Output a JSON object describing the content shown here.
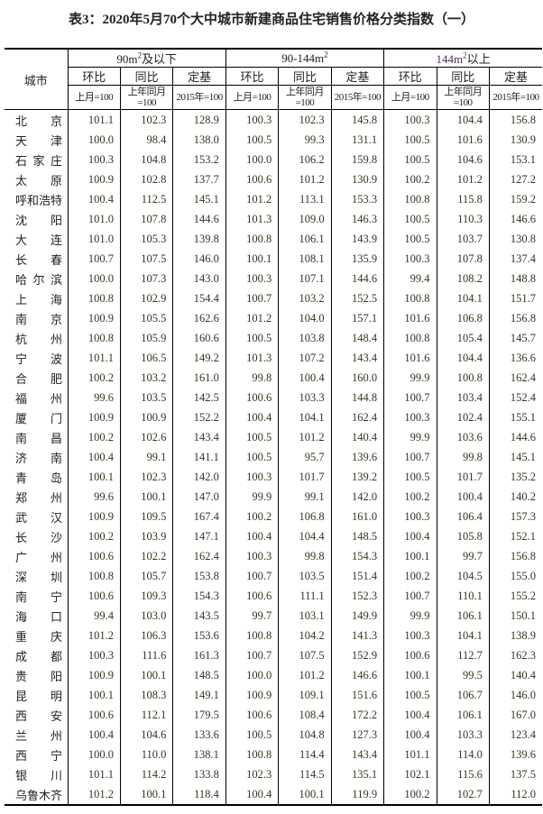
{
  "title": "表3：2020年5月70个大中城市新建商品住宅销售价格分类指数（一）",
  "header": {
    "city": "城市",
    "groups": [
      {
        "pre": "90m",
        "sup": "2",
        "post": "及以下"
      },
      {
        "pre": "90-144m",
        "sup": "2",
        "post": ""
      },
      {
        "pre": "144m",
        "sup": "2",
        "post": "以上"
      }
    ],
    "sub": [
      "环比",
      "同比",
      "定基"
    ],
    "base": [
      "上月=100",
      "上年同月=100",
      "2015年=100"
    ]
  },
  "rows": [
    {
      "city": "北京",
      "v": [
        "101.1",
        "102.3",
        "128.9",
        "100.3",
        "102.3",
        "145.8",
        "100.3",
        "104.4",
        "156.8"
      ]
    },
    {
      "city": "天津",
      "v": [
        "100.0",
        "98.4",
        "138.0",
        "100.5",
        "99.3",
        "131.1",
        "100.5",
        "101.6",
        "130.9"
      ]
    },
    {
      "city": "石家庄",
      "v": [
        "100.3",
        "104.8",
        "153.2",
        "100.0",
        "106.2",
        "159.8",
        "100.5",
        "104.6",
        "153.1"
      ]
    },
    {
      "city": "太原",
      "v": [
        "100.9",
        "102.8",
        "137.7",
        "100.6",
        "101.2",
        "130.9",
        "100.2",
        "101.2",
        "127.2"
      ]
    },
    {
      "city": "呼和浩特",
      "v": [
        "100.4",
        "112.5",
        "145.1",
        "101.2",
        "113.1",
        "153.3",
        "100.8",
        "115.8",
        "159.2"
      ]
    },
    {
      "city": "沈阳",
      "v": [
        "101.0",
        "107.8",
        "144.6",
        "101.3",
        "109.0",
        "146.3",
        "100.5",
        "110.3",
        "146.6"
      ]
    },
    {
      "city": "大连",
      "v": [
        "101.0",
        "105.3",
        "139.8",
        "100.8",
        "106.1",
        "143.9",
        "100.5",
        "103.7",
        "130.8"
      ]
    },
    {
      "city": "长春",
      "v": [
        "100.7",
        "107.5",
        "146.0",
        "100.1",
        "108.1",
        "135.9",
        "100.3",
        "107.8",
        "137.4"
      ]
    },
    {
      "city": "哈尔滨",
      "v": [
        "100.0",
        "107.3",
        "143.0",
        "100.3",
        "107.1",
        "144.6",
        "99.4",
        "108.2",
        "148.8"
      ]
    },
    {
      "city": "上海",
      "v": [
        "100.8",
        "102.9",
        "154.4",
        "100.7",
        "103.2",
        "152.5",
        "100.8",
        "104.1",
        "151.7"
      ]
    },
    {
      "city": "南京",
      "v": [
        "100.9",
        "105.5",
        "162.6",
        "101.2",
        "104.0",
        "157.1",
        "101.6",
        "106.8",
        "156.8"
      ]
    },
    {
      "city": "杭州",
      "v": [
        "100.8",
        "105.9",
        "160.6",
        "100.5",
        "103.8",
        "148.4",
        "100.8",
        "105.4",
        "145.7"
      ]
    },
    {
      "city": "宁波",
      "v": [
        "101.1",
        "106.5",
        "149.2",
        "101.3",
        "107.2",
        "143.4",
        "101.6",
        "104.4",
        "136.6"
      ]
    },
    {
      "city": "合肥",
      "v": [
        "100.2",
        "103.2",
        "161.0",
        "99.8",
        "100.4",
        "160.0",
        "99.9",
        "100.8",
        "162.4"
      ]
    },
    {
      "city": "福州",
      "v": [
        "99.6",
        "103.5",
        "142.5",
        "100.6",
        "103.3",
        "144.8",
        "100.7",
        "103.4",
        "152.4"
      ]
    },
    {
      "city": "厦门",
      "v": [
        "100.9",
        "100.9",
        "152.2",
        "100.4",
        "104.1",
        "162.4",
        "100.3",
        "102.4",
        "155.1"
      ]
    },
    {
      "city": "南昌",
      "v": [
        "100.2",
        "102.6",
        "143.4",
        "100.5",
        "101.2",
        "140.4",
        "99.9",
        "103.6",
        "144.6"
      ]
    },
    {
      "city": "济南",
      "v": [
        "100.4",
        "99.1",
        "141.1",
        "100.5",
        "95.7",
        "139.6",
        "100.7",
        "99.8",
        "145.1"
      ]
    },
    {
      "city": "青岛",
      "v": [
        "100.1",
        "102.3",
        "142.0",
        "100.3",
        "101.7",
        "139.2",
        "100.5",
        "101.7",
        "135.2"
      ]
    },
    {
      "city": "郑州",
      "v": [
        "99.6",
        "100.1",
        "147.0",
        "99.9",
        "99.1",
        "142.0",
        "100.2",
        "100.4",
        "140.2"
      ]
    },
    {
      "city": "武汉",
      "v": [
        "100.9",
        "109.5",
        "167.4",
        "100.2",
        "106.8",
        "161.0",
        "100.3",
        "106.4",
        "157.3"
      ]
    },
    {
      "city": "长沙",
      "v": [
        "100.2",
        "103.9",
        "147.1",
        "100.4",
        "104.4",
        "148.5",
        "100.4",
        "105.8",
        "152.1"
      ]
    },
    {
      "city": "广州",
      "v": [
        "100.6",
        "102.2",
        "162.4",
        "100.3",
        "99.8",
        "154.3",
        "100.1",
        "99.7",
        "156.8"
      ]
    },
    {
      "city": "深圳",
      "v": [
        "100.8",
        "105.7",
        "153.8",
        "100.7",
        "103.5",
        "151.4",
        "100.2",
        "104.5",
        "155.0"
      ]
    },
    {
      "city": "南宁",
      "v": [
        "100.6",
        "109.3",
        "154.3",
        "100.6",
        "111.1",
        "152.3",
        "100.7",
        "110.1",
        "155.2"
      ]
    },
    {
      "city": "海口",
      "v": [
        "99.4",
        "103.0",
        "143.5",
        "99.7",
        "103.1",
        "149.9",
        "99.9",
        "106.1",
        "150.1"
      ]
    },
    {
      "city": "重庆",
      "v": [
        "101.2",
        "106.3",
        "153.6",
        "100.8",
        "104.2",
        "141.3",
        "100.3",
        "104.1",
        "138.9"
      ]
    },
    {
      "city": "成都",
      "v": [
        "100.3",
        "111.6",
        "161.3",
        "100.7",
        "107.5",
        "152.9",
        "100.6",
        "112.7",
        "162.3"
      ]
    },
    {
      "city": "贵阳",
      "v": [
        "100.9",
        "100.1",
        "148.5",
        "100.0",
        "101.2",
        "146.6",
        "100.1",
        "99.5",
        "140.4"
      ]
    },
    {
      "city": "昆明",
      "v": [
        "100.1",
        "108.3",
        "149.1",
        "100.9",
        "109.1",
        "151.6",
        "100.5",
        "106.7",
        "146.0"
      ]
    },
    {
      "city": "西安",
      "v": [
        "100.6",
        "112.1",
        "179.5",
        "100.6",
        "108.4",
        "172.2",
        "100.4",
        "106.1",
        "167.0"
      ]
    },
    {
      "city": "兰州",
      "v": [
        "100.4",
        "104.6",
        "133.6",
        "100.5",
        "104.8",
        "127.3",
        "100.4",
        "103.3",
        "123.4"
      ]
    },
    {
      "city": "西宁",
      "v": [
        "100.0",
        "110.0",
        "138.1",
        "100.8",
        "114.4",
        "143.4",
        "101.1",
        "114.0",
        "139.6"
      ]
    },
    {
      "city": "银川",
      "v": [
        "101.1",
        "114.2",
        "133.8",
        "102.3",
        "114.5",
        "135.1",
        "102.1",
        "115.6",
        "137.5"
      ]
    },
    {
      "city": "乌鲁木齐",
      "v": [
        "101.2",
        "100.1",
        "118.4",
        "100.4",
        "100.1",
        "119.9",
        "100.2",
        "102.7",
        "112.0"
      ]
    }
  ]
}
